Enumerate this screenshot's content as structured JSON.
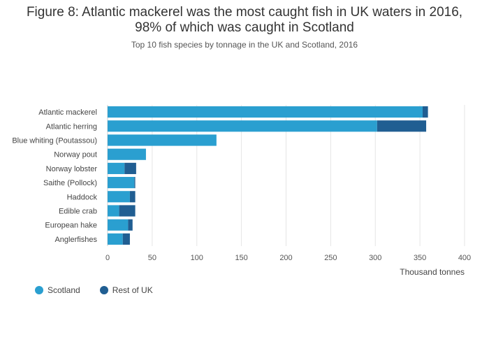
{
  "title_line1": "Figure 8: Atlantic mackerel was the most caught fish in UK waters in 2016,",
  "title_line2": "98% of which was caught in Scotland",
  "subtitle": "Top 10 fish species by tonnage in the UK and Scotland, 2016",
  "colors": {
    "scotland": "#2a9fd0",
    "rest_of_uk": "#205e92",
    "grid": "#e5e5e5"
  },
  "chart_data": {
    "type": "bar",
    "orientation": "horizontal",
    "stacked": true,
    "title": "Figure 8: Atlantic mackerel was the most caught fish in UK waters in 2016, 98% of which was caught in Scotland",
    "subtitle": "Top 10 fish species by tonnage in the UK and Scotland, 2016",
    "xlabel": "Thousand tonnes",
    "ylabel": "",
    "xlim": [
      0,
      400
    ],
    "xticks": [
      0,
      50,
      100,
      150,
      200,
      250,
      300,
      350,
      400
    ],
    "grid": true,
    "legend_position": "bottom-left",
    "categories": [
      "Atlantic mackerel",
      "Atlantic herring",
      "Blue whiting (Poutassou)",
      "Norway pout",
      "Norway lobster",
      "Saithe (Pollock)",
      "Haddock",
      "Edible crab",
      "European hake",
      "Anglerfishes"
    ],
    "series": [
      {
        "name": "Scotland",
        "values": [
          353,
          302,
          122,
          43,
          19,
          30,
          25,
          13,
          23,
          17
        ]
      },
      {
        "name": "Rest of UK",
        "values": [
          6,
          55,
          0,
          0,
          13,
          1,
          6,
          18,
          5,
          8
        ]
      }
    ]
  }
}
